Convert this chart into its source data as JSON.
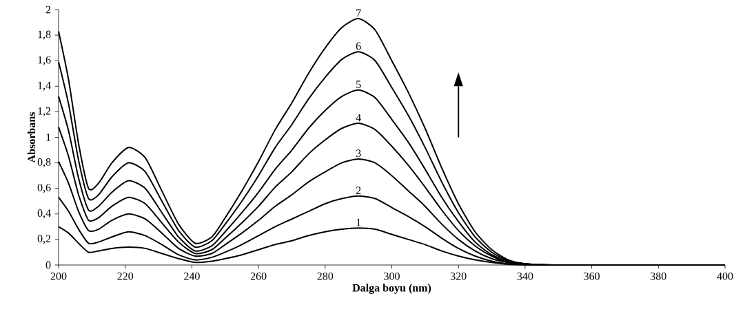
{
  "chart_data": {
    "type": "line",
    "xlabel": "Dalga boyu (nm)",
    "ylabel": "Absorbans",
    "x": [
      200,
      203,
      206,
      209,
      212,
      216,
      221,
      226,
      231,
      236,
      241,
      246,
      250,
      255,
      260,
      265,
      270,
      275,
      280,
      285,
      290,
      295,
      300,
      305,
      310,
      315,
      320,
      325,
      330,
      335,
      340,
      350,
      400
    ],
    "xlim": [
      200,
      400
    ],
    "xticks": [
      200,
      220,
      240,
      260,
      280,
      300,
      320,
      340,
      360,
      380,
      400
    ],
    "ylim": [
      0,
      2
    ],
    "yticks": [
      {
        "value": 0,
        "label": "0"
      },
      {
        "value": 0.2,
        "label": "0,2"
      },
      {
        "value": 0.4,
        "label": "0,4"
      },
      {
        "value": 0.6,
        "label": "0,6"
      },
      {
        "value": 0.8,
        "label": "0,8"
      },
      {
        "value": 1,
        "label": "1"
      },
      {
        "value": 1.2,
        "label": "1,2"
      },
      {
        "value": 1.4,
        "label": "1,4"
      },
      {
        "value": 1.6,
        "label": "1,6"
      },
      {
        "value": 1.8,
        "label": "1,8"
      },
      {
        "value": 2,
        "label": "2"
      }
    ],
    "line_style": "solid",
    "series": [
      {
        "name": "1",
        "color": "#000000",
        "values": [
          0.3,
          0.25,
          0.17,
          0.1,
          0.11,
          0.13,
          0.14,
          0.13,
          0.09,
          0.05,
          0.02,
          0.03,
          0.05,
          0.08,
          0.12,
          0.16,
          0.19,
          0.23,
          0.26,
          0.28,
          0.29,
          0.28,
          0.24,
          0.2,
          0.16,
          0.11,
          0.07,
          0.04,
          0.02,
          0.005,
          0.002,
          0,
          0
        ]
      },
      {
        "name": "2",
        "color": "#000000",
        "values": [
          0.53,
          0.42,
          0.28,
          0.17,
          0.18,
          0.22,
          0.26,
          0.23,
          0.16,
          0.08,
          0.04,
          0.06,
          0.1,
          0.16,
          0.23,
          0.3,
          0.36,
          0.42,
          0.48,
          0.52,
          0.54,
          0.52,
          0.45,
          0.38,
          0.3,
          0.21,
          0.13,
          0.07,
          0.03,
          0.01,
          0.003,
          0,
          0
        ]
      },
      {
        "name": "3",
        "color": "#000000",
        "values": [
          0.81,
          0.64,
          0.42,
          0.27,
          0.28,
          0.35,
          0.4,
          0.36,
          0.25,
          0.13,
          0.07,
          0.09,
          0.16,
          0.25,
          0.35,
          0.46,
          0.55,
          0.65,
          0.73,
          0.8,
          0.83,
          0.8,
          0.7,
          0.58,
          0.46,
          0.32,
          0.2,
          0.11,
          0.05,
          0.02,
          0.005,
          0,
          0
        ]
      },
      {
        "name": "4",
        "color": "#000000",
        "values": [
          1.08,
          0.85,
          0.55,
          0.35,
          0.37,
          0.46,
          0.53,
          0.48,
          0.33,
          0.18,
          0.09,
          0.12,
          0.21,
          0.33,
          0.46,
          0.61,
          0.73,
          0.87,
          0.98,
          1.07,
          1.11,
          1.06,
          0.93,
          0.78,
          0.61,
          0.43,
          0.27,
          0.15,
          0.07,
          0.02,
          0.005,
          0,
          0
        ]
      },
      {
        "name": "5",
        "color": "#000000",
        "values": [
          1.32,
          1.05,
          0.68,
          0.43,
          0.46,
          0.57,
          0.66,
          0.6,
          0.41,
          0.22,
          0.11,
          0.15,
          0.26,
          0.41,
          0.57,
          0.75,
          0.9,
          1.07,
          1.21,
          1.32,
          1.37,
          1.31,
          1.14,
          0.96,
          0.75,
          0.53,
          0.34,
          0.18,
          0.08,
          0.03,
          0.01,
          0,
          0
        ]
      },
      {
        "name": "6",
        "color": "#000000",
        "values": [
          1.59,
          1.26,
          0.82,
          0.52,
          0.55,
          0.69,
          0.8,
          0.73,
          0.5,
          0.27,
          0.14,
          0.19,
          0.32,
          0.5,
          0.7,
          0.92,
          1.1,
          1.3,
          1.47,
          1.61,
          1.67,
          1.6,
          1.39,
          1.17,
          0.92,
          0.65,
          0.41,
          0.22,
          0.1,
          0.035,
          0.01,
          0,
          0
        ]
      },
      {
        "name": "7",
        "color": "#000000",
        "values": [
          1.83,
          1.45,
          0.95,
          0.6,
          0.64,
          0.8,
          0.92,
          0.84,
          0.58,
          0.32,
          0.17,
          0.22,
          0.37,
          0.58,
          0.81,
          1.06,
          1.27,
          1.5,
          1.7,
          1.86,
          1.93,
          1.84,
          1.6,
          1.35,
          1.07,
          0.76,
          0.48,
          0.26,
          0.12,
          0.04,
          0.01,
          0,
          0
        ]
      }
    ]
  }
}
